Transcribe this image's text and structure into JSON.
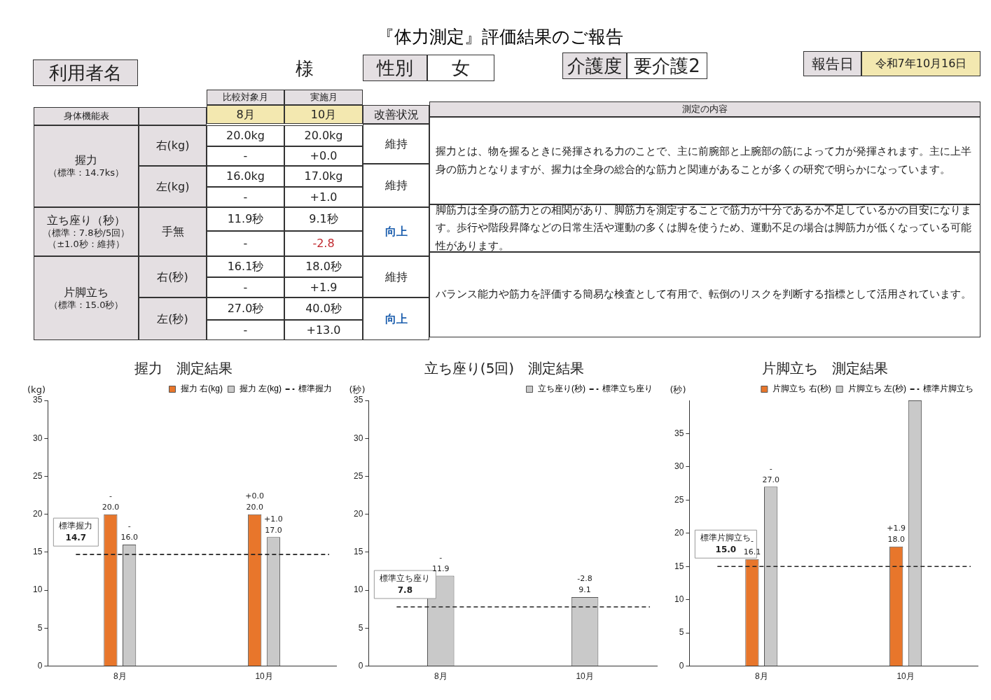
{
  "chart_data": [
    {
      "type": "other",
      "title": "『体力測定』評価結果のご報告",
      "annotations": [
        "利用者名",
        "様",
        "性別",
        "女",
        "介護度",
        "要介護2",
        "報告日",
        "令和7年10月16日",
        "比較対象月",
        "実施月",
        "身体機能表",
        "8月",
        "10月",
        "改善状況",
        "測定の内容",
        "握力",
        "（標準：14.7ks）",
        "右(kg)",
        "20.0kg",
        "-",
        "20.0kg",
        "+0.0",
        "維持",
        "左(kg)",
        "16.0kg",
        "-",
        "17.0kg",
        "+1.0",
        "維持",
        "握力とは、物を握るときに発揮される力のことで、主に前腕部と上腕部の筋によって力が発揮されます。主に上半身の筋力となりますが、握力は全身の総合的な筋力と関連があることが多くの研究で明らかになっています。",
        "立ち座り（秒）",
        "（標準：7.8秒/5回）",
        "（±1.0秒：維持）",
        "手無",
        "11.9秒",
        "-",
        "9.1秒",
        "-2.8",
        "向上",
        "脚筋力は全身の筋力との相関があり、脚筋力を測定することで筋力が十分であるか不足しているかの目安になります。歩行や階段昇降などの日常生活や運動の多くは脚を使うため、運動不足の場合は脚筋力が低くなっている可能性があります。",
        "片脚立ち",
        "（標準：15.0秒）",
        "右(秒)",
        "16.1秒",
        "-",
        "18.0秒",
        "+1.9",
        "維持",
        "左(秒)",
        "27.0秒",
        "-",
        "40.0秒",
        "+13.0",
        "向上",
        "バランス能力や筋力を評価する簡易な検査として有用で、転倒のリスクを判断する指標として活用されています。"
      ]
    },
    {
      "type": "bar",
      "title": "握力　測定結果",
      "ylabel": "(kg)",
      "categories": [
        "8月",
        "10月"
      ],
      "series": [
        {
          "name": "握力 右(kg)",
          "color": "#e8762b",
          "values": [
            20.0,
            20.0
          ],
          "value_labels": [
            "20.0",
            "20.0"
          ]
        },
        {
          "name": "握力 左(kg)",
          "color": "#c9c9c9",
          "values": [
            16.0,
            17.0
          ],
          "value_labels": [
            "16.0",
            "17.0"
          ]
        }
      ],
      "ylim": [
        0,
        35
      ],
      "yticks": [
        0,
        5,
        10,
        15,
        20,
        25,
        30,
        35
      ],
      "grid": false,
      "legend": "top right",
      "ref_lines": [
        {
          "axis": "y",
          "value": 14.7,
          "label": "標準握力",
          "color": "#222222",
          "line_style": "dashed"
        }
      ],
      "annotations": [
        {
          "text": "14.7",
          "y": 14.7
        },
        {
          "text": "-",
          "x": "8月",
          "y": 20.0
        },
        {
          "text": "-",
          "x": "8月",
          "y": 16.0
        },
        {
          "text": "+0.0",
          "x": "10月",
          "y": 20.0
        },
        {
          "text": "+1.0",
          "x": "10月",
          "y": 17.0
        }
      ]
    },
    {
      "type": "bar",
      "title": "立ち座り(5回)　測定結果",
      "ylabel": "(秒)",
      "categories": [
        "8月",
        "10月"
      ],
      "series": [
        {
          "name": "立ち座り(秒)",
          "color": "#c9c9c9",
          "values": [
            11.9,
            9.1
          ],
          "value_labels": [
            "11.9",
            "9.1"
          ]
        }
      ],
      "ylim": [
        0,
        35
      ],
      "yticks": [
        0,
        5,
        10,
        15,
        20,
        25,
        30,
        35
      ],
      "grid": false,
      "legend": "top right",
      "ref_lines": [
        {
          "axis": "y",
          "value": 7.8,
          "label": "標準立ち座り",
          "color": "#222222",
          "line_style": "dashed"
        }
      ],
      "annotations": [
        {
          "text": "7.8",
          "y": 7.8
        },
        {
          "text": "-",
          "x": "8月",
          "y": 11.9
        },
        {
          "text": "-2.8",
          "x": "10月",
          "y": 9.1
        }
      ]
    },
    {
      "type": "bar",
      "title": "片脚立ち　測定結果",
      "ylabel": "(秒)",
      "categories": [
        "8月",
        "10月"
      ],
      "series": [
        {
          "name": "片脚立ち 右(秒)",
          "color": "#e8762b",
          "values": [
            16.1,
            18.0
          ],
          "value_labels": [
            "16.1",
            "18.0"
          ]
        },
        {
          "name": "片脚立ち 左(秒)",
          "color": "#c9c9c9",
          "values": [
            27.0,
            40.0
          ],
          "value_labels": [
            "27.0",
            null
          ]
        }
      ],
      "ylim": [
        0,
        40
      ],
      "yticks": [
        0,
        5,
        10,
        15,
        20,
        25,
        30,
        35
      ],
      "grid": false,
      "legend": "top right",
      "ref_lines": [
        {
          "axis": "y",
          "value": 15.0,
          "label": "標準片脚立ち",
          "color": "#222222",
          "line_style": "dashed"
        }
      ],
      "annotations": [
        {
          "text": "15.0",
          "y": 15.0
        },
        {
          "text": "-",
          "x": "8月",
          "y": 16.1
        },
        {
          "text": "-",
          "x": "8月",
          "y": 27.0
        },
        {
          "text": "+1.9",
          "x": "10月",
          "y": 18.0
        }
      ]
    }
  ]
}
